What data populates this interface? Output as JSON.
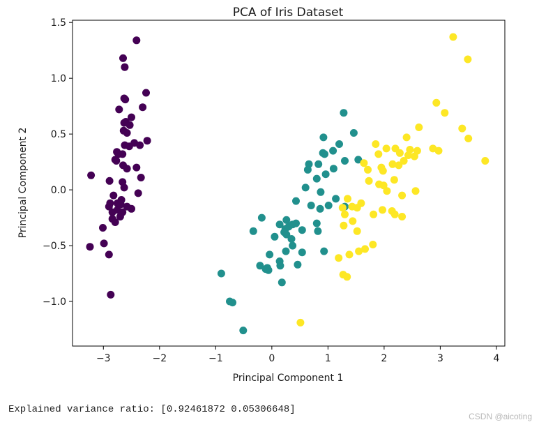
{
  "chart_data": {
    "type": "scatter",
    "title": "PCA of Iris Dataset",
    "xlabel": "Principal Component 1",
    "ylabel": "Principal Component 2",
    "xlim": [
      -3.55,
      4.15
    ],
    "ylim": [
      -1.4,
      1.52
    ],
    "xticks": [
      -3,
      -2,
      -1,
      0,
      1,
      2,
      3,
      4
    ],
    "ytick_values": [
      -1.0,
      -0.5,
      0.0,
      0.5,
      1.0,
      1.5
    ],
    "ytick_labels": [
      "−1.0",
      "−0.5",
      "0.0",
      "0.5",
      "1.0",
      "1.5"
    ],
    "xtick_labels": [
      "−3",
      "−2",
      "−1",
      "0",
      "1",
      "2",
      "3",
      "4"
    ],
    "grid": false,
    "legend": "none",
    "series": [
      {
        "color": "#440154",
        "points": [
          [
            -2.41,
            1.34
          ],
          [
            -2.65,
            1.18
          ],
          [
            -2.62,
            1.1
          ],
          [
            -2.24,
            0.87
          ],
          [
            -2.63,
            0.82
          ],
          [
            -2.61,
            0.81
          ],
          [
            -2.3,
            0.74
          ],
          [
            -2.72,
            0.72
          ],
          [
            -2.5,
            0.65
          ],
          [
            -2.6,
            0.61
          ],
          [
            -2.63,
            0.6
          ],
          [
            -2.53,
            0.58
          ],
          [
            -2.64,
            0.53
          ],
          [
            -2.58,
            0.51
          ],
          [
            -2.22,
            0.44
          ],
          [
            -2.45,
            0.42
          ],
          [
            -2.35,
            0.4
          ],
          [
            -2.62,
            0.4
          ],
          [
            -2.54,
            0.39
          ],
          [
            -2.76,
            0.34
          ],
          [
            -2.73,
            0.32
          ],
          [
            -2.66,
            0.32
          ],
          [
            -2.79,
            0.27
          ],
          [
            -2.77,
            0.26
          ],
          [
            -2.65,
            0.22
          ],
          [
            -2.58,
            0.19
          ],
          [
            -2.41,
            0.2
          ],
          [
            -2.33,
            0.11
          ],
          [
            -3.22,
            0.13
          ],
          [
            -2.89,
            0.08
          ],
          [
            -2.66,
            0.07
          ],
          [
            -2.63,
            0.02
          ],
          [
            -2.82,
            -0.05
          ],
          [
            -2.38,
            -0.03
          ],
          [
            -2.68,
            -0.09
          ],
          [
            -2.88,
            -0.12
          ],
          [
            -2.75,
            -0.12
          ],
          [
            -2.69,
            -0.13
          ],
          [
            -2.9,
            -0.15
          ],
          [
            -2.58,
            -0.15
          ],
          [
            -2.75,
            -0.18
          ],
          [
            -2.84,
            -0.2
          ],
          [
            -2.66,
            -0.2
          ],
          [
            -2.5,
            -0.17
          ],
          [
            -2.7,
            -0.24
          ],
          [
            -2.84,
            -0.26
          ],
          [
            -2.79,
            -0.29
          ],
          [
            -3.01,
            -0.34
          ],
          [
            -3.24,
            -0.51
          ],
          [
            -2.99,
            -0.48
          ],
          [
            -2.9,
            -0.58
          ],
          [
            -2.87,
            -0.94
          ]
        ]
      },
      {
        "color": "#21908d",
        "points": [
          [
            1.28,
            0.69
          ],
          [
            1.46,
            0.51
          ],
          [
            0.92,
            0.47
          ],
          [
            1.2,
            0.41
          ],
          [
            1.09,
            0.35
          ],
          [
            0.91,
            0.33
          ],
          [
            0.94,
            0.32
          ],
          [
            1.3,
            0.26
          ],
          [
            1.54,
            0.27
          ],
          [
            0.83,
            0.23
          ],
          [
            0.66,
            0.23
          ],
          [
            0.64,
            0.18
          ],
          [
            1.1,
            0.19
          ],
          [
            0.96,
            0.14
          ],
          [
            0.8,
            0.1
          ],
          [
            0.6,
            0.02
          ],
          [
            0.87,
            -0.02
          ],
          [
            0.43,
            -0.1
          ],
          [
            1.14,
            -0.08
          ],
          [
            0.7,
            -0.14
          ],
          [
            1.01,
            -0.14
          ],
          [
            0.86,
            -0.17
          ],
          [
            1.3,
            -0.15
          ],
          [
            -0.18,
            -0.25
          ],
          [
            0.26,
            -0.27
          ],
          [
            0.43,
            -0.3
          ],
          [
            0.14,
            -0.31
          ],
          [
            0.24,
            -0.35
          ],
          [
            0.3,
            -0.33
          ],
          [
            0.37,
            -0.31
          ],
          [
            0.8,
            -0.3
          ],
          [
            0.22,
            -0.38
          ],
          [
            0.54,
            -0.36
          ],
          [
            0.82,
            -0.37
          ],
          [
            -0.33,
            -0.37
          ],
          [
            0.26,
            -0.4
          ],
          [
            0.05,
            -0.42
          ],
          [
            0.35,
            -0.44
          ],
          [
            0.93,
            -0.55
          ],
          [
            0.37,
            -0.5
          ],
          [
            0.25,
            -0.55
          ],
          [
            0.54,
            -0.56
          ],
          [
            -0.04,
            -0.58
          ],
          [
            0.14,
            -0.64
          ],
          [
            0.46,
            -0.67
          ],
          [
            -0.21,
            -0.68
          ],
          [
            0.15,
            -0.68
          ],
          [
            -0.08,
            -0.7
          ],
          [
            -0.11,
            -0.71
          ],
          [
            -0.06,
            -0.72
          ],
          [
            0.18,
            -0.83
          ],
          [
            -0.9,
            -0.75
          ],
          [
            -0.75,
            -1.0
          ],
          [
            -0.7,
            -1.01
          ],
          [
            -0.51,
            -1.26
          ]
        ]
      },
      {
        "color": "#fde725",
        "points": [
          [
            3.23,
            1.37
          ],
          [
            3.49,
            1.17
          ],
          [
            2.93,
            0.78
          ],
          [
            3.08,
            0.69
          ],
          [
            2.62,
            0.56
          ],
          [
            3.39,
            0.55
          ],
          [
            2.4,
            0.47
          ],
          [
            3.5,
            0.46
          ],
          [
            1.85,
            0.41
          ],
          [
            2.04,
            0.37
          ],
          [
            2.87,
            0.37
          ],
          [
            2.2,
            0.37
          ],
          [
            2.46,
            0.36
          ],
          [
            2.97,
            0.35
          ],
          [
            2.28,
            0.33
          ],
          [
            2.59,
            0.35
          ],
          [
            2.43,
            0.31
          ],
          [
            2.54,
            0.3
          ],
          [
            1.9,
            0.32
          ],
          [
            2.35,
            0.26
          ],
          [
            2.15,
            0.23
          ],
          [
            1.64,
            0.24
          ],
          [
            2.26,
            0.22
          ],
          [
            1.95,
            0.2
          ],
          [
            1.71,
            0.18
          ],
          [
            1.98,
            0.17
          ],
          [
            3.8,
            0.26
          ],
          [
            2.18,
            0.09
          ],
          [
            1.73,
            0.08
          ],
          [
            1.91,
            0.05
          ],
          [
            1.99,
            0.04
          ],
          [
            2.05,
            -0.01
          ],
          [
            2.56,
            -0.01
          ],
          [
            2.32,
            -0.05
          ],
          [
            1.35,
            -0.08
          ],
          [
            1.59,
            -0.12
          ],
          [
            1.43,
            -0.15
          ],
          [
            1.26,
            -0.16
          ],
          [
            1.52,
            -0.16
          ],
          [
            1.97,
            -0.18
          ],
          [
            2.14,
            -0.19
          ],
          [
            2.32,
            -0.24
          ],
          [
            1.81,
            -0.22
          ],
          [
            2.19,
            -0.22
          ],
          [
            1.3,
            -0.22
          ],
          [
            1.44,
            -0.28
          ],
          [
            1.28,
            -0.32
          ],
          [
            1.52,
            -0.37
          ],
          [
            1.8,
            -0.49
          ],
          [
            1.66,
            -0.53
          ],
          [
            1.55,
            -0.55
          ],
          [
            1.38,
            -0.58
          ],
          [
            1.19,
            -0.61
          ],
          [
            1.27,
            -0.76
          ],
          [
            1.34,
            -0.78
          ],
          [
            0.51,
            -1.19
          ]
        ]
      }
    ]
  },
  "output_text": "Explained variance ratio: [0.92461872 0.05306648]",
  "watermark": "CSDN @aicoting",
  "colors": {
    "axis": "#000000",
    "text": "#1a1a1a"
  }
}
